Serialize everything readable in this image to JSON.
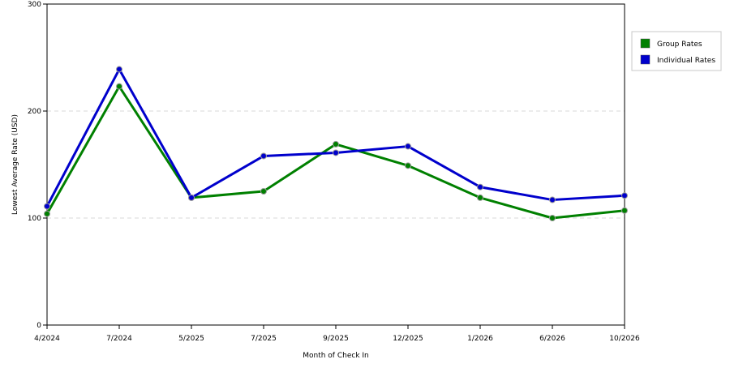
{
  "chart_data": {
    "type": "line",
    "title": "",
    "xlabel": "Month of Check In",
    "ylabel": "Lowest Average Rate (USD)",
    "categories": [
      "4/2024",
      "7/2024",
      "5/2025",
      "7/2025",
      "9/2025",
      "12/2025",
      "1/2026",
      "6/2026",
      "10/2026"
    ],
    "ylim": [
      0,
      300
    ],
    "yticks": [
      0,
      100,
      200,
      300
    ],
    "grid": "horizontal dashed",
    "legend_position": "right",
    "series": [
      {
        "name": "Group Rates",
        "color": "#008000",
        "values": [
          104,
          223,
          119,
          125,
          169,
          149,
          119,
          100,
          107
        ]
      },
      {
        "name": "Individual Rates",
        "color": "#0000cc",
        "values": [
          111,
          239,
          119,
          158,
          161,
          167,
          129,
          117,
          121
        ]
      }
    ]
  }
}
